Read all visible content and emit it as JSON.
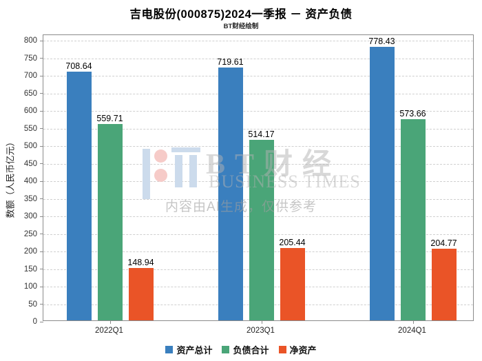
{
  "header": {
    "title": "吉电股份(000875)2024一季报 － 资产负债",
    "subtitle": "BT财经绘制"
  },
  "watermark": {
    "brand_cn": "BT财经",
    "brand_en": "BUSINESS TIMES",
    "disclaimer": "内容由AI生成，仅供参考",
    "logo_blue": "#ccdbec",
    "logo_pink": "#f6cbc8"
  },
  "chart_data": {
    "type": "bar",
    "title": "吉电股份(000875)2024一季报 － 资产负债",
    "subtitle": "BT财经绘制",
    "categories": [
      "2022Q1",
      "2023Q1",
      "2024Q1"
    ],
    "series": [
      {
        "name": "资产总计",
        "color": "#3a7fbe",
        "values": [
          708.64,
          719.61,
          778.43
        ]
      },
      {
        "name": "负债合计",
        "color": "#4aa578",
        "values": [
          559.71,
          514.17,
          573.66
        ]
      },
      {
        "name": "净资产",
        "color": "#ea5427",
        "values": [
          148.94,
          205.44,
          204.77
        ]
      }
    ],
    "xlabel": "",
    "ylabel": "数额（人民币亿元）",
    "ylim": [
      0,
      816
    ],
    "ytick_step": 50,
    "ytick_max": 800,
    "grid": "horizontal-dashed",
    "legend_position": "bottom",
    "bar_labels": true
  }
}
